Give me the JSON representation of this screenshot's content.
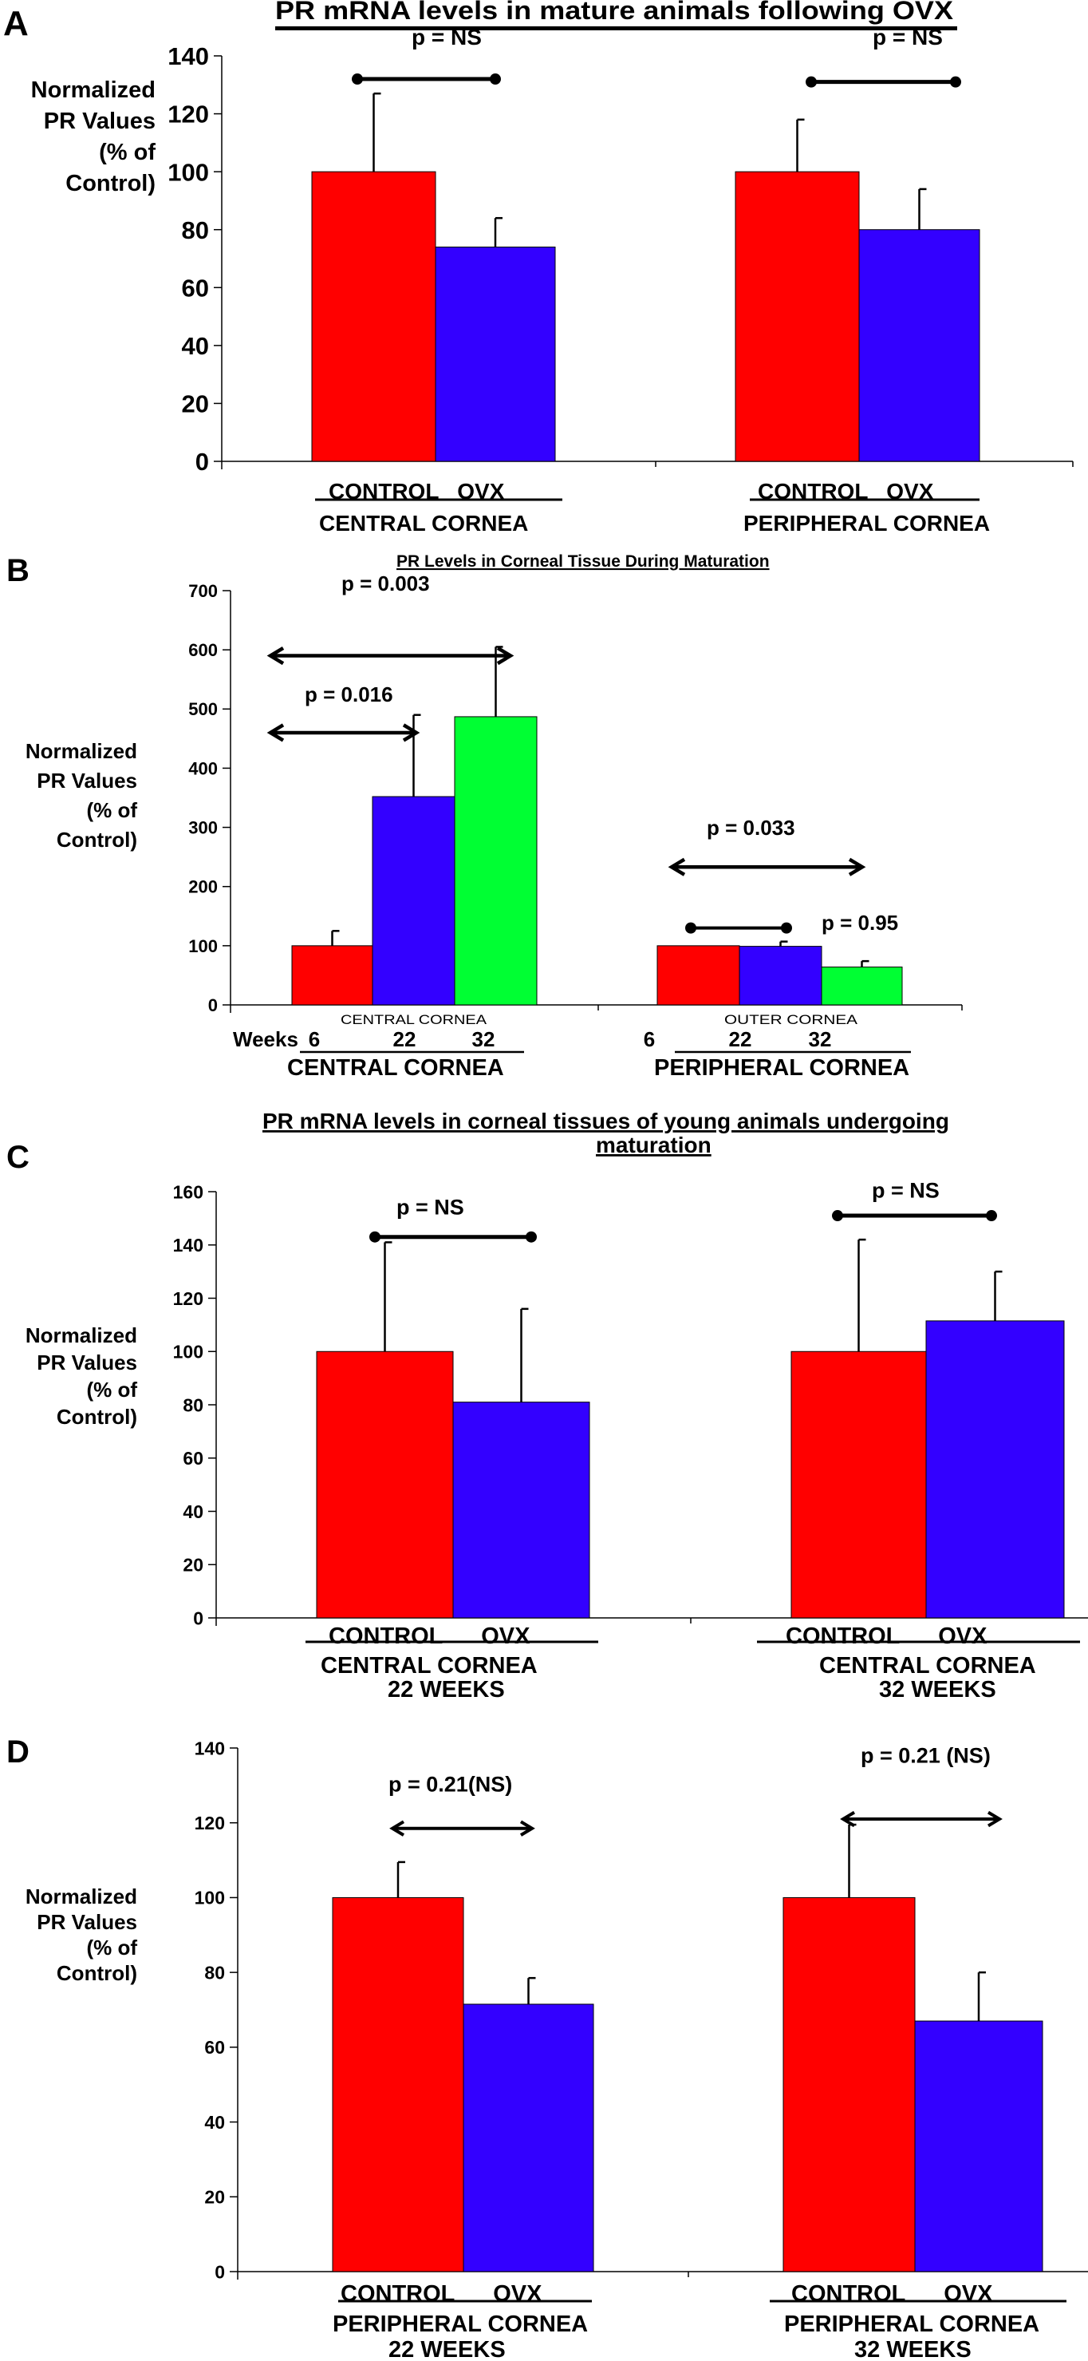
{
  "colors": {
    "control": "#ff0000",
    "ovx": "#3300ff",
    "week32": "#00ff33",
    "axis": "#000000"
  },
  "ylabel_lines": [
    "Normalized",
    "PR Values",
    "(% of",
    "Control)"
  ],
  "chart_data": [
    {
      "panel": "A",
      "type": "bar",
      "title": "PR mRNA levels in mature animals following OVX",
      "ylabel": "Normalized PR Values (% of Control)",
      "ylim": [
        0,
        140
      ],
      "yticks": [
        0,
        20,
        40,
        60,
        80,
        100,
        120,
        140
      ],
      "groups": [
        {
          "label_top": "CONTROL   OVX",
          "label": "CENTRAL CORNEA",
          "label2": "",
          "bars": [
            {
              "name": "CONTROL",
              "value": 100,
              "err_top": 127,
              "color": "control"
            },
            {
              "name": "OVX",
              "value": 74,
              "err_top": 84,
              "color": "ovx"
            }
          ],
          "annotation": {
            "text": "p = NS",
            "kind": "dumbbell",
            "level": 132
          }
        },
        {
          "label_top": "CONTROL   OVX",
          "label": "PERIPHERAL CORNEA",
          "label2": "",
          "bars": [
            {
              "name": "CONTROL",
              "value": 100,
              "err_top": 118,
              "color": "control"
            },
            {
              "name": "OVX",
              "value": 80,
              "err_top": 94,
              "color": "ovx"
            }
          ],
          "annotation": {
            "text": "p = NS",
            "kind": "dumbbell",
            "level": 131
          }
        }
      ]
    },
    {
      "panel": "B",
      "type": "bar",
      "title": "PR Levels in Corneal Tissue During Maturation",
      "ylabel": "Normalized PR Values (% of Control)",
      "ylim": [
        0,
        700
      ],
      "yticks": [
        0,
        100,
        200,
        300,
        400,
        500,
        600,
        700
      ],
      "weeks_label": "Weeks",
      "groups": [
        {
          "sublabel": "CENTRAL CORNEA",
          "week_ticks": [
            "6",
            "22",
            "32"
          ],
          "label": "CENTRAL CORNEA",
          "bars": [
            {
              "name": "6 weeks",
              "value": 100,
              "err_top": 125,
              "color": "control"
            },
            {
              "name": "22 weeks",
              "value": 352,
              "err_top": 490,
              "color": "ovx"
            },
            {
              "name": "32 weeks",
              "value": 487,
              "err_top": 605,
              "color": "week32"
            }
          ]
        },
        {
          "sublabel": "OUTER CORNEA",
          "week_ticks": [
            "6",
            "22",
            "32"
          ],
          "label": "PERIPHERAL CORNEA",
          "bars": [
            {
              "name": "6 weeks",
              "value": 100,
              "err_top": 100,
              "color": "control"
            },
            {
              "name": "22 weeks",
              "value": 99,
              "err_top": 107,
              "color": "ovx"
            },
            {
              "name": "32 weeks",
              "value": 64,
              "err_top": 74,
              "color": "week32"
            }
          ]
        }
      ],
      "annotations": [
        {
          "text": "p = 0.003",
          "kind": "arrow",
          "from": "6 weeks (central)",
          "to": "32 weeks (central)",
          "level": 590
        },
        {
          "text": "p = 0.016",
          "kind": "arrow",
          "from": "6 weeks (central)",
          "to": "22 weeks (central)",
          "level": 460
        },
        {
          "text": "p = 0.033",
          "kind": "arrow",
          "from": "6 weeks (peripheral)",
          "to": "32 weeks (peripheral)",
          "level": 233
        },
        {
          "text": "p = 0.95",
          "kind": "dumbbell",
          "from": "6 weeks (peripheral)",
          "to": "22 weeks (peripheral)",
          "level": 130
        }
      ]
    },
    {
      "panel": "C",
      "type": "bar",
      "title": "PR mRNA levels in corneal tissues of young animals undergoing maturation",
      "title_lines": [
        "PR mRNA levels in corneal tissues of young animals undergoing",
        "maturation"
      ],
      "ylabel": "Normalized PR Values (% of Control)",
      "ylim": [
        0,
        160
      ],
      "yticks": [
        0,
        20,
        40,
        60,
        80,
        100,
        120,
        140,
        160
      ],
      "groups": [
        {
          "label_top": "CONTROL      OVX",
          "label": "CENTRAL CORNEA",
          "label2": "22 WEEKS",
          "bars": [
            {
              "name": "CONTROL",
              "value": 100,
              "err_top": 141,
              "color": "control"
            },
            {
              "name": "OVX",
              "value": 81,
              "err_top": 116,
              "color": "ovx"
            }
          ],
          "annotation": {
            "text": "p = NS",
            "kind": "dumbbell",
            "level": 143
          }
        },
        {
          "label_top": "CONTROL      OVX",
          "label": "CENTRAL CORNEA",
          "label2": "32 WEEKS",
          "bars": [
            {
              "name": "CONTROL",
              "value": 100,
              "err_top": 142,
              "color": "control"
            },
            {
              "name": "OVX",
              "value": 111.5,
              "err_top": 130,
              "color": "ovx"
            }
          ],
          "annotation": {
            "text": "p = NS",
            "kind": "dumbbell",
            "level": 151
          }
        }
      ]
    },
    {
      "panel": "D",
      "type": "bar",
      "title": "",
      "ylabel": "Normalized PR Values (% of Control)",
      "ylim": [
        0,
        140
      ],
      "yticks": [
        0,
        20,
        40,
        60,
        80,
        100,
        120,
        140
      ],
      "groups": [
        {
          "label_top": "CONTROL      OVX",
          "label": "PERIPHERAL CORNEA",
          "label2": "22 WEEKS",
          "bars": [
            {
              "name": "CONTROL",
              "value": 100,
              "err_top": 109.5,
              "color": "control"
            },
            {
              "name": "OVX",
              "value": 71.5,
              "err_top": 78.5,
              "color": "ovx"
            }
          ],
          "annotation": {
            "text": "p = 0.21(NS)",
            "kind": "arrow",
            "level": 118.5
          }
        },
        {
          "label_top": "CONTROL      OVX",
          "label": "PERIPHERAL CORNEA",
          "label2": "32 WEEKS",
          "bars": [
            {
              "name": "CONTROL",
              "value": 100,
              "err_top": 119.5,
              "color": "control"
            },
            {
              "name": "OVX",
              "value": 67,
              "err_top": 80,
              "color": "ovx"
            }
          ],
          "annotation": {
            "text": "p = 0.21 (NS)",
            "kind": "arrow",
            "level": 121
          }
        }
      ]
    }
  ]
}
